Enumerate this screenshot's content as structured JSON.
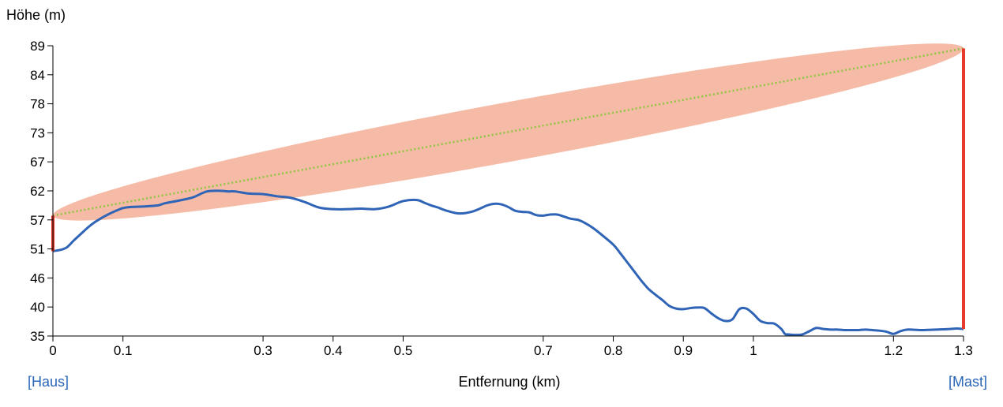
{
  "chart_data": {
    "type": "line",
    "ylabel": "Höhe (m)",
    "xlabel": "Entfernung (km)",
    "x_ticks": [
      "0",
      "0.1",
      "0.3",
      "0.4",
      "0.5",
      "0.7",
      "0.8",
      "0.9",
      "1",
      "1.2",
      "1.3"
    ],
    "x_tick_values": [
      0,
      0.1,
      0.3,
      0.4,
      0.5,
      0.7,
      0.8,
      0.9,
      1.0,
      1.2,
      1.3
    ],
    "y_ticks": [
      "35",
      "40",
      "46",
      "51",
      "57",
      "62",
      "67",
      "73",
      "78",
      "84",
      "89"
    ],
    "y_tick_values": [
      35,
      40.4,
      45.8,
      51.2,
      56.6,
      62,
      67.4,
      72.8,
      78.2,
      83.6,
      89
    ],
    "xlim": [
      0,
      1.3
    ],
    "ylim": [
      35,
      89
    ],
    "start_label": "[Haus]",
    "end_label": "[Mast]",
    "start_elevation": 50.8,
    "start_antenna_top": 57.4,
    "end_elevation": 36.3,
    "end_antenna_top": 88.5,
    "fresnel_half_width": 5.5,
    "colors": {
      "terrain": "#2f64b6",
      "line_of_sight": "#8dc63f",
      "fresnel_zone": "#f5b7a1",
      "antenna": "#e63a2e"
    },
    "series": [
      {
        "type": "terrain",
        "x": [
          0,
          0.01,
          0.02,
          0.03,
          0.04,
          0.05,
          0.06,
          0.07,
          0.08,
          0.09,
          0.1,
          0.11,
          0.13,
          0.15,
          0.16,
          0.18,
          0.2,
          0.22,
          0.24,
          0.25,
          0.26,
          0.28,
          0.3,
          0.32,
          0.34,
          0.36,
          0.38,
          0.4,
          0.42,
          0.44,
          0.46,
          0.48,
          0.5,
          0.52,
          0.53,
          0.54,
          0.55,
          0.56,
          0.58,
          0.6,
          0.62,
          0.63,
          0.64,
          0.65,
          0.66,
          0.67,
          0.68,
          0.69,
          0.7,
          0.71,
          0.72,
          0.73,
          0.74,
          0.75,
          0.76,
          0.77,
          0.78,
          0.8,
          0.81,
          0.82,
          0.83,
          0.84,
          0.85,
          0.86,
          0.87,
          0.88,
          0.89,
          0.9,
          0.91,
          0.92,
          0.93,
          0.94,
          0.95,
          0.96,
          0.97,
          0.98,
          0.99,
          1.0,
          1.01,
          1.02,
          1.03,
          1.04,
          1.045,
          1.05,
          1.06,
          1.07,
          1.08,
          1.09,
          1.1,
          1.11,
          1.12,
          1.13,
          1.14,
          1.15,
          1.16,
          1.17,
          1.18,
          1.19,
          1.2,
          1.21,
          1.22,
          1.24,
          1.26,
          1.28,
          1.29,
          1.3
        ],
        "y": [
          50.8,
          51,
          51.5,
          52.8,
          54,
          55.2,
          56.2,
          57,
          57.7,
          58.3,
          58.8,
          59,
          59.1,
          59.3,
          59.7,
          60.2,
          60.8,
          61.9,
          62,
          61.9,
          61.9,
          61.5,
          61.4,
          61,
          60.7,
          59.9,
          58.9,
          58.6,
          58.6,
          58.7,
          58.6,
          59.1,
          60.1,
          60.3,
          59.8,
          59.3,
          58.9,
          58.4,
          57.8,
          58.2,
          59.3,
          59.6,
          59.5,
          59,
          58.3,
          58.1,
          58,
          57.5,
          57.4,
          57.6,
          57.6,
          57.2,
          56.8,
          56.6,
          56,
          55.2,
          54.2,
          52,
          50.4,
          48.7,
          47,
          45.3,
          43.8,
          42.7,
          41.7,
          40.6,
          40.1,
          40,
          40.2,
          40.3,
          40.2,
          39.2,
          38.3,
          37.8,
          38.1,
          40,
          40.1,
          39.1,
          37.8,
          37.4,
          37.3,
          36.3,
          35.4,
          35.3,
          35.2,
          35.3,
          35.9,
          36.5,
          36.3,
          36.2,
          36.2,
          36.1,
          36.1,
          36.1,
          36.2,
          36.1,
          36,
          35.8,
          35.4,
          35.9,
          36.2,
          36.1,
          36.2,
          36.3,
          36.4,
          36.3
        ]
      }
    ]
  }
}
